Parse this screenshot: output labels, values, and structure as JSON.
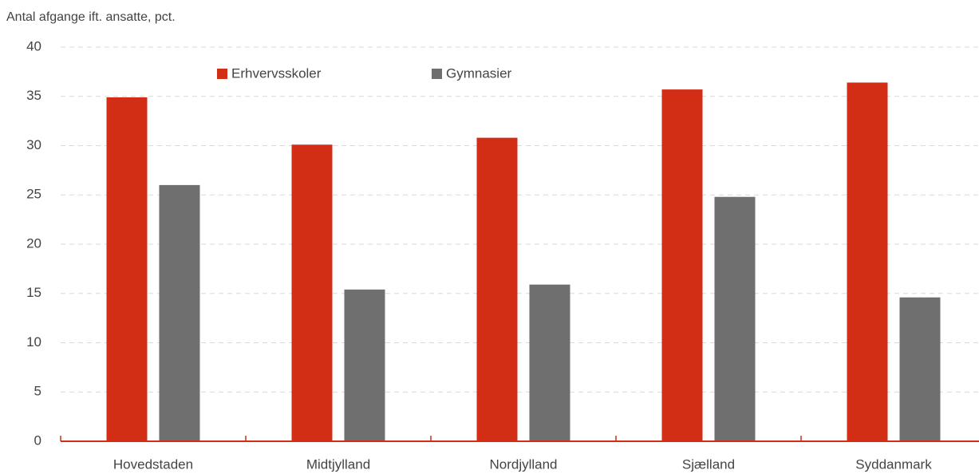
{
  "chart_data": {
    "type": "bar",
    "title": "Antal afgange ift. ansatte, pct.",
    "categories": [
      "Hovedstaden",
      "Midtjylland",
      "Nordjylland",
      "Sjælland",
      "Syddanmark"
    ],
    "series": [
      {
        "name": "Erhvervsskoler",
        "color": "#d22e15",
        "values": [
          34.9,
          30.1,
          30.8,
          35.7,
          36.4
        ]
      },
      {
        "name": "Gymnasier",
        "color": "#6f6f6f",
        "values": [
          26.0,
          15.4,
          15.9,
          24.8,
          14.6
        ]
      }
    ],
    "ylim": [
      0,
      40
    ],
    "yticks": [
      0,
      5,
      10,
      15,
      20,
      25,
      30,
      35,
      40
    ],
    "grid": true,
    "legend": "top"
  }
}
